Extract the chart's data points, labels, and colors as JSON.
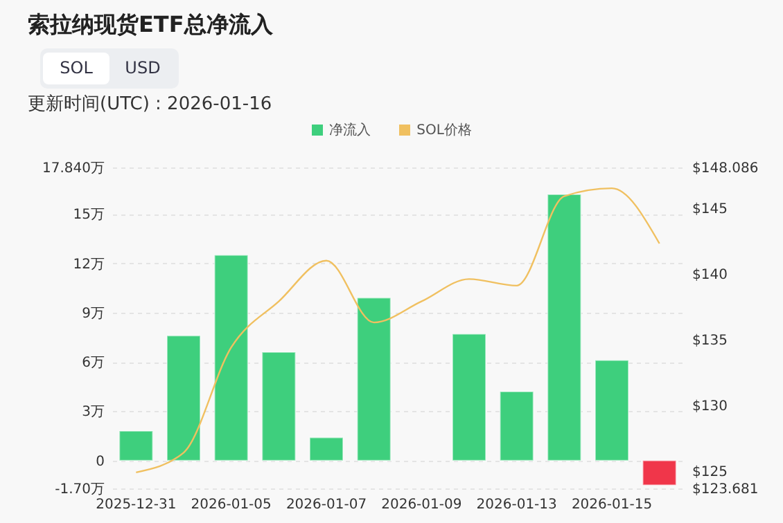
{
  "chart_data": {
    "type": "bar",
    "title": "索拉纳现货ETF总净流入",
    "subtitle": "更新时间(UTC) : 2026-01-16",
    "annotations": [
      "SOL",
      "USD"
    ],
    "categories": [
      "2025-12-31",
      null,
      "2026-01-05",
      null,
      "2026-01-07",
      null,
      "2026-01-09",
      null,
      "2026-01-13",
      null,
      "2026-01-15",
      null
    ],
    "series": [
      {
        "name": "净流入",
        "color": "#3ecf7d",
        "colors": [
          "#3ecf7d",
          "#3ecf7d",
          "#3ecf7d",
          "#3ecf7d",
          "#3ecf7d",
          "#3ecf7d",
          "#3ecf7d",
          "#3ecf7d",
          "#3ecf7d",
          "#3ecf7d",
          "#3ecf7d",
          "#f0364a"
        ],
        "values": [
          1.8,
          7.6,
          12.5,
          6.6,
          1.4,
          9.9,
          null,
          7.7,
          4.2,
          16.2,
          6.1,
          -1.5
        ]
      },
      {
        "name": "SOL价格",
        "type": "line",
        "axis": "y2",
        "color": "#f0c060",
        "values": [
          124.9,
          126.4,
          134.4,
          137.9,
          141.0,
          136.3,
          137.9,
          139.6,
          139.1,
          145.9,
          146.5,
          142.3
        ]
      }
    ],
    "ylim": [
      -1.7,
      17.84
    ],
    "yticks": [
      {
        "value": -1.7,
        "label": "-1.70万"
      },
      {
        "value": 0,
        "label": "0"
      },
      {
        "value": 3,
        "label": "3万"
      },
      {
        "value": 6,
        "label": "6万"
      },
      {
        "value": 9,
        "label": "9万"
      },
      {
        "value": 12,
        "label": "12万"
      },
      {
        "value": 15,
        "label": "15万"
      },
      {
        "value": 17.84,
        "label": "17.840万"
      }
    ],
    "y2lim": [
      123.681,
      148.086
    ],
    "y2ticks": [
      {
        "value": 123.681,
        "label": "$123.681"
      },
      {
        "value": 125,
        "label": "$125"
      },
      {
        "value": 130,
        "label": "$130"
      },
      {
        "value": 135,
        "label": "$135"
      },
      {
        "value": 140,
        "label": "$140"
      },
      {
        "value": 145,
        "label": "$145"
      },
      {
        "value": 148.086,
        "label": "$148.086"
      }
    ],
    "grid": "y",
    "legend": "top",
    "marker": "none",
    "line_style": "solid"
  }
}
